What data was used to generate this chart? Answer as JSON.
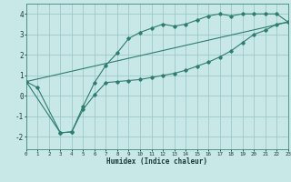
{
  "title": "",
  "xlabel": "Humidex (Indice chaleur)",
  "bg_color": "#c8e8e8",
  "grid_color": "#a0c8c8",
  "line_color": "#2e7d6e",
  "xlim": [
    0,
    23
  ],
  "ylim": [
    -2.6,
    4.5
  ],
  "xticks": [
    0,
    1,
    2,
    3,
    4,
    5,
    6,
    7,
    8,
    9,
    10,
    11,
    12,
    13,
    14,
    15,
    16,
    17,
    18,
    19,
    20,
    21,
    22,
    23
  ],
  "yticks": [
    -2,
    -1,
    0,
    1,
    2,
    3,
    4
  ],
  "line1_x": [
    0,
    1,
    3,
    4,
    5,
    6,
    7,
    8,
    9,
    10,
    11,
    12,
    13,
    14,
    15,
    16,
    17,
    18,
    19,
    20,
    21,
    22,
    23
  ],
  "line1_y": [
    0.7,
    0.4,
    -1.8,
    -1.75,
    -0.65,
    0.05,
    0.65,
    0.7,
    0.75,
    0.8,
    0.9,
    1.0,
    1.1,
    1.25,
    1.45,
    1.65,
    1.9,
    2.2,
    2.6,
    3.0,
    3.2,
    3.5,
    3.6
  ],
  "line2_x": [
    0,
    3,
    4,
    5,
    6,
    7,
    8,
    9,
    10,
    11,
    12,
    13,
    14,
    15,
    16,
    17,
    18,
    19,
    20,
    21,
    22,
    23
  ],
  "line2_y": [
    0.7,
    -1.8,
    -1.75,
    -0.5,
    0.65,
    1.5,
    2.1,
    2.8,
    3.1,
    3.3,
    3.5,
    3.4,
    3.5,
    3.7,
    3.9,
    4.0,
    3.9,
    4.0,
    4.0,
    4.0,
    4.0,
    3.6
  ],
  "line3_x": [
    0,
    23
  ],
  "line3_y": [
    0.7,
    3.6
  ]
}
